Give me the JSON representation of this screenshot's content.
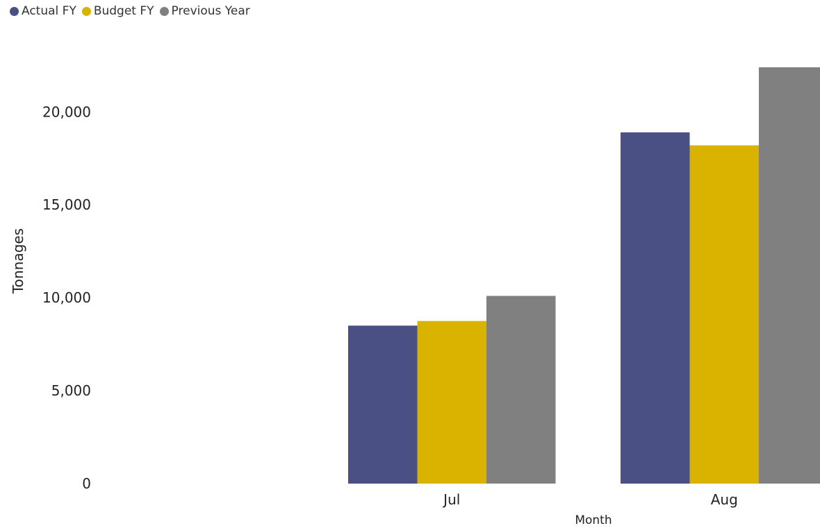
{
  "chart_data": {
    "type": "bar",
    "categories": [
      "Jul",
      "Aug"
    ],
    "series": [
      {
        "name": "Actual FY",
        "values": [
          8500,
          18900
        ],
        "color": "#4a5084"
      },
      {
        "name": "Budget FY",
        "values": [
          8750,
          18200
        ],
        "color": "#d9b300"
      },
      {
        "name": "Previous Year",
        "values": [
          10100,
          22400
        ],
        "color": "#808080"
      }
    ],
    "xlabel": "Month",
    "ylabel": "Tonnages",
    "ylim": [
      0,
      22400
    ],
    "yticks": [
      0,
      5000,
      10000,
      15000,
      20000
    ],
    "ytick_labels": [
      "0",
      "5,000",
      "10,000",
      "15,000",
      "20,000"
    ],
    "grid": false,
    "legend": "top-left"
  }
}
